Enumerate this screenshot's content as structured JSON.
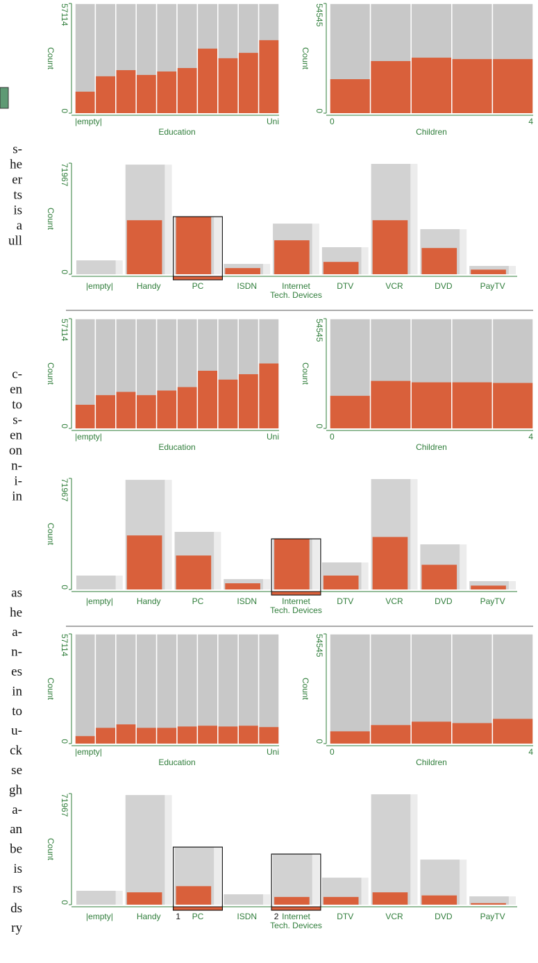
{
  "side_text": [
    [
      "s-",
      "he",
      "er",
      "ts",
      "is",
      "a",
      "ull"
    ],
    [
      "c-",
      "en",
      "to",
      "s-",
      "en",
      "on",
      "n-",
      "i-",
      "in"
    ],
    [
      "as",
      "he",
      "a-",
      "n-",
      "es",
      "in",
      "to",
      "u-",
      "ck",
      "se",
      "gh",
      "a-",
      "an",
      "be",
      "is",
      "rs",
      "ds",
      "ry"
    ]
  ],
  "chart_data": [
    {
      "type": "bar",
      "xlabel": "Education",
      "ylabel": "Count",
      "categories": [
        "|empty|",
        null,
        null,
        null,
        null,
        null,
        null,
        null,
        null,
        "Uni"
      ],
      "values": [
        11200,
        19200,
        22400,
        19900,
        21700,
        23500,
        33600,
        28600,
        31400,
        38000
      ],
      "color": "#d9603b",
      "ylim": [
        0,
        57114
      ],
      "yticks": [
        0,
        57114
      ]
    },
    {
      "type": "bar",
      "xlabel": "Children",
      "ylabel": "Count",
      "categories": [
        "0",
        null,
        null,
        null,
        "4"
      ],
      "values": [
        16900,
        25900,
        27600,
        26900,
        26900
      ],
      "color": "#d9603b",
      "ylim": [
        0,
        54545
      ],
      "yticks": [
        0,
        54545
      ]
    },
    {
      "type": "device",
      "xlabel": "Tech. Devices",
      "ylabel": "Count",
      "categories": [
        "|empty|",
        "Handy",
        "PC",
        "ISDN",
        "Internet",
        "DTV",
        "VCR",
        "DVD",
        "PayTV"
      ],
      "series": [
        {
          "color": "#d2d2d2",
          "values": [
            9000,
            71000,
            37300,
            6700,
            32800,
            17500,
            71500,
            29200,
            5400
          ]
        },
        {
          "color": "#d9603b",
          "values": [
            0,
            35000,
            37300,
            4000,
            22000,
            8000,
            35000,
            17000,
            3000
          ]
        }
      ],
      "selected_categories": [
        "PC"
      ],
      "ylim": [
        0,
        71967
      ],
      "yticks": [
        0,
        71967
      ]
    },
    {
      "type": "bar",
      "xlabel": "Education",
      "ylabel": "Count",
      "categories": [
        "|empty|",
        null,
        null,
        null,
        null,
        null,
        null,
        null,
        null,
        "Uni"
      ],
      "values": [
        12300,
        17300,
        19000,
        17300,
        19700,
        21500,
        30000,
        25400,
        28200,
        33800
      ],
      "color": "#d9603b",
      "ylim": [
        0,
        57114
      ],
      "yticks": [
        0,
        57114
      ]
    },
    {
      "type": "bar",
      "xlabel": "Children",
      "ylabel": "Count",
      "categories": [
        "0",
        null,
        null,
        null,
        "4"
      ],
      "values": [
        16200,
        23600,
        22900,
        22900,
        22600
      ],
      "color": "#d9603b",
      "ylim": [
        0,
        54545
      ],
      "yticks": [
        0,
        54545
      ]
    },
    {
      "type": "device",
      "xlabel": "Tech. Devices",
      "ylabel": "Count",
      "categories": [
        "|empty|",
        "Handy",
        "PC",
        "ISDN",
        "Internet",
        "DTV",
        "VCR",
        "DVD",
        "PayTV"
      ],
      "series": [
        {
          "color": "#d2d2d2",
          "values": [
            9000,
            71000,
            37300,
            6700,
            32800,
            17500,
            71500,
            29200,
            5400
          ]
        },
        {
          "color": "#d9603b",
          "values": [
            0,
            35000,
            22000,
            4000,
            32800,
            9000,
            34000,
            16000,
            2500
          ]
        }
      ],
      "selected_categories": [
        "Internet"
      ],
      "ylim": [
        0,
        71967
      ],
      "yticks": [
        0,
        71967
      ]
    },
    {
      "type": "bar",
      "xlabel": "Education",
      "ylabel": "Count",
      "categories": [
        "|empty|",
        null,
        null,
        null,
        null,
        null,
        null,
        null,
        null,
        "Uni"
      ],
      "values": [
        3900,
        8200,
        10000,
        8200,
        8200,
        8900,
        9300,
        8900,
        9300,
        8600
      ],
      "color": "#d9603b",
      "ylim": [
        0,
        57114
      ],
      "yticks": [
        0,
        57114
      ]
    },
    {
      "type": "bar",
      "xlabel": "Children",
      "ylabel": "Count",
      "categories": [
        "0",
        null,
        null,
        null,
        "4"
      ],
      "values": [
        6100,
        9200,
        10900,
        10200,
        12300
      ],
      "color": "#d9603b",
      "ylim": [
        0,
        54545
      ],
      "yticks": [
        0,
        54545
      ]
    },
    {
      "type": "device",
      "xlabel": "Tech. Devices",
      "ylabel": "Count",
      "categories": [
        "|empty|",
        "Handy",
        "PC",
        "ISDN",
        "Internet",
        "DTV",
        "VCR",
        "DVD",
        "PayTV"
      ],
      "series": [
        {
          "color": "#d2d2d2",
          "values": [
            9000,
            71000,
            37300,
            6700,
            32800,
            17500,
            71500,
            29200,
            5400
          ]
        },
        {
          "color": "#d9603b",
          "values": [
            0,
            8000,
            12000,
            0,
            5000,
            5000,
            8000,
            6000,
            1000
          ]
        }
      ],
      "selected_categories": [
        "PC",
        "Internet"
      ],
      "selection_labels": [
        "1",
        "2"
      ],
      "ylim": [
        0,
        71967
      ],
      "yticks": [
        0,
        71967
      ]
    }
  ]
}
